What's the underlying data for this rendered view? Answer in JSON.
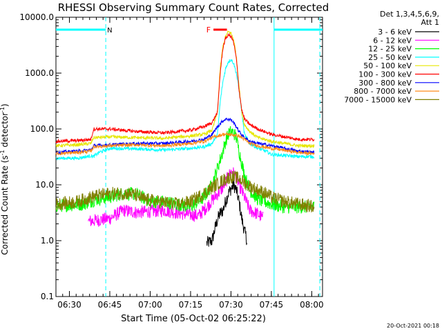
{
  "chart_data": {
    "type": "line",
    "title": "RHESSI Observing Summary Count Rates, Corrected",
    "xlabel": "Start Time (05-Oct-02 06:25:22)",
    "ylabel": "Corrected Count Rate (s⁻¹ detector⁻¹)",
    "ylabel_parts": {
      "main": "Corrected Count Rate (s",
      "sup1": "-1",
      "mid": " detector",
      "sup2": "-1",
      "end": ")"
    },
    "y_scale": "log",
    "ylim": [
      0.1,
      10000
    ],
    "xlim_minutes_after_0625": [
      0,
      99
    ],
    "yticks": [
      {
        "value": 0.1,
        "label": "0.1"
      },
      {
        "value": 1,
        "label": "1.0"
      },
      {
        "value": 10,
        "label": "10.0"
      },
      {
        "value": 100,
        "label": "100.0"
      },
      {
        "value": 1000,
        "label": "1000.0"
      },
      {
        "value": 10000,
        "label": "10000.0"
      }
    ],
    "xticks": [
      {
        "minute": 5,
        "label": "06:30"
      },
      {
        "minute": 20,
        "label": "06:45"
      },
      {
        "minute": 35,
        "label": "07:00"
      },
      {
        "minute": 50,
        "label": "07:15"
      },
      {
        "minute": 65,
        "label": "07:30"
      },
      {
        "minute": 80,
        "label": "07:45"
      },
      {
        "minute": 95,
        "label": "08:00"
      }
    ],
    "legend": {
      "header": [
        "Det 1,3,4,5,6,9,",
        "Att 1"
      ],
      "placement": "right"
    },
    "series": [
      {
        "name": "3 - 6 keV",
        "color": "#000000",
        "points": [
          [
            56,
            0.9
          ],
          [
            58,
            1.0
          ],
          [
            59,
            1.6
          ],
          [
            60,
            2.4
          ],
          [
            61,
            3.1
          ],
          [
            62,
            3.5
          ],
          [
            63,
            5.0
          ],
          [
            64,
            7.0
          ],
          [
            65,
            8.5
          ],
          [
            66,
            10.0
          ],
          [
            67,
            8.0
          ],
          [
            68,
            5.0
          ],
          [
            69,
            2.5
          ],
          [
            70,
            1.5
          ],
          [
            71,
            1.0
          ]
        ]
      },
      {
        "name": "6 - 12 keV",
        "color": "#ff00ff",
        "points": [
          [
            12,
            2.2
          ],
          [
            20,
            2.5
          ],
          [
            25,
            3.5
          ],
          [
            30,
            3.2
          ],
          [
            40,
            3.5
          ],
          [
            48,
            3.0
          ],
          [
            53,
            2.8
          ],
          [
            56,
            4.0
          ],
          [
            59,
            6.0
          ],
          [
            62,
            9.0
          ],
          [
            64,
            14.0
          ],
          [
            65,
            17.0
          ],
          [
            66,
            16.0
          ],
          [
            67,
            14.0
          ],
          [
            68,
            10.0
          ],
          [
            70,
            6.0
          ],
          [
            72,
            3.5
          ],
          [
            75,
            3.0
          ],
          [
            77,
            2.5
          ]
        ]
      },
      {
        "name": "12 - 25 keV",
        "color": "#00ff00",
        "points": [
          [
            0,
            4.2
          ],
          [
            10,
            4.5
          ],
          [
            15,
            5.5
          ],
          [
            20,
            6.0
          ],
          [
            25,
            7.0
          ],
          [
            30,
            6.8
          ],
          [
            35,
            5.0
          ],
          [
            40,
            5.0
          ],
          [
            45,
            4.5
          ],
          [
            50,
            4.0
          ],
          [
            55,
            6.0
          ],
          [
            58,
            10.0
          ],
          [
            60,
            20.0
          ],
          [
            62,
            40.0
          ],
          [
            63,
            60.0
          ],
          [
            64,
            80.0
          ],
          [
            65,
            90.0
          ],
          [
            66,
            85.0
          ],
          [
            67,
            70.0
          ],
          [
            68,
            40.0
          ],
          [
            70,
            15.0
          ],
          [
            72,
            8.0
          ],
          [
            75,
            5.5
          ],
          [
            80,
            4.5
          ],
          [
            85,
            4.0
          ],
          [
            90,
            4.0
          ],
          [
            96,
            4.0
          ]
        ]
      },
      {
        "name": "25 - 50 keV",
        "color": "#00ffff",
        "points": [
          [
            0,
            30
          ],
          [
            8,
            30
          ],
          [
            13,
            33
          ],
          [
            14,
            32
          ],
          [
            16,
            38
          ],
          [
            20,
            45
          ],
          [
            30,
            44
          ],
          [
            40,
            42
          ],
          [
            50,
            45
          ],
          [
            55,
            48
          ],
          [
            58,
            55
          ],
          [
            60,
            80
          ],
          [
            61,
            300
          ],
          [
            62,
            700
          ],
          [
            63,
            1200
          ],
          [
            64,
            1600
          ],
          [
            65,
            1750
          ],
          [
            66,
            1500
          ],
          [
            67,
            1000
          ],
          [
            68,
            500
          ],
          [
            69,
            200
          ],
          [
            70,
            80
          ],
          [
            72,
            55
          ],
          [
            75,
            45
          ],
          [
            78,
            40
          ],
          [
            80,
            35
          ],
          [
            90,
            32
          ],
          [
            96,
            32
          ]
        ]
      },
      {
        "name": "50 - 100 keV",
        "color": "#e6e600",
        "points": [
          [
            0,
            50
          ],
          [
            8,
            52
          ],
          [
            13,
            55
          ],
          [
            14,
            70
          ],
          [
            20,
            72
          ],
          [
            30,
            70
          ],
          [
            40,
            68
          ],
          [
            50,
            75
          ],
          [
            55,
            80
          ],
          [
            58,
            95
          ],
          [
            60,
            200
          ],
          [
            61,
            1200
          ],
          [
            62,
            3000
          ],
          [
            63,
            4500
          ],
          [
            64,
            5500
          ],
          [
            65,
            5200
          ],
          [
            66,
            4000
          ],
          [
            67,
            2000
          ],
          [
            68,
            600
          ],
          [
            69,
            200
          ],
          [
            70,
            120
          ],
          [
            72,
            90
          ],
          [
            75,
            70
          ],
          [
            80,
            60
          ],
          [
            90,
            50
          ],
          [
            96,
            50
          ]
        ]
      },
      {
        "name": "100 - 300 keV",
        "color": "#ff0000",
        "points": [
          [
            0,
            60
          ],
          [
            8,
            62
          ],
          [
            13,
            65
          ],
          [
            14,
            100
          ],
          [
            20,
            100
          ],
          [
            30,
            90
          ],
          [
            40,
            85
          ],
          [
            50,
            95
          ],
          [
            55,
            110
          ],
          [
            58,
            130
          ],
          [
            60,
            200
          ],
          [
            61,
            1000
          ],
          [
            62,
            2800
          ],
          [
            63,
            4200
          ],
          [
            64,
            4800
          ],
          [
            65,
            4600
          ],
          [
            66,
            3500
          ],
          [
            67,
            1800
          ],
          [
            68,
            500
          ],
          [
            69,
            220
          ],
          [
            70,
            150
          ],
          [
            72,
            120
          ],
          [
            75,
            100
          ],
          [
            80,
            80
          ],
          [
            90,
            65
          ],
          [
            96,
            65
          ]
        ]
      },
      {
        "name": "300 - 800 keV",
        "color": "#0000ff",
        "points": [
          [
            0,
            38
          ],
          [
            8,
            40
          ],
          [
            13,
            42
          ],
          [
            14,
            50
          ],
          [
            20,
            52
          ],
          [
            30,
            55
          ],
          [
            40,
            55
          ],
          [
            50,
            60
          ],
          [
            55,
            65
          ],
          [
            58,
            80
          ],
          [
            60,
            110
          ],
          [
            62,
            140
          ],
          [
            63,
            150
          ],
          [
            64,
            150
          ],
          [
            65,
            145
          ],
          [
            66,
            130
          ],
          [
            67,
            110
          ],
          [
            68,
            90
          ],
          [
            70,
            70
          ],
          [
            72,
            60
          ],
          [
            75,
            55
          ],
          [
            80,
            50
          ],
          [
            90,
            40
          ],
          [
            96,
            38
          ]
        ]
      },
      {
        "name": "800 - 7000 keV",
        "color": "#ff8c1a",
        "points": [
          [
            0,
            36
          ],
          [
            8,
            38
          ],
          [
            13,
            40
          ],
          [
            14,
            48
          ],
          [
            20,
            50
          ],
          [
            30,
            52
          ],
          [
            40,
            50
          ],
          [
            50,
            55
          ],
          [
            55,
            60
          ],
          [
            58,
            70
          ],
          [
            60,
            75
          ],
          [
            62,
            80
          ],
          [
            64,
            80
          ],
          [
            66,
            78
          ],
          [
            68,
            75
          ],
          [
            70,
            65
          ],
          [
            72,
            55
          ],
          [
            75,
            50
          ],
          [
            80,
            45
          ],
          [
            90,
            38
          ],
          [
            96,
            36
          ]
        ]
      },
      {
        "name": "7000 - 15000 keV",
        "color": "#808000",
        "points": [
          [
            0,
            4.5
          ],
          [
            8,
            5.0
          ],
          [
            13,
            6.0
          ],
          [
            16,
            6.5
          ],
          [
            20,
            7.0
          ],
          [
            28,
            7.0
          ],
          [
            33,
            5.5
          ],
          [
            38,
            5.0
          ],
          [
            45,
            4.5
          ],
          [
            50,
            5.0
          ],
          [
            55,
            7.0
          ],
          [
            58,
            9.0
          ],
          [
            62,
            12.0
          ],
          [
            65,
            14.0
          ],
          [
            68,
            13.0
          ],
          [
            71,
            10.0
          ],
          [
            75,
            8.0
          ],
          [
            78,
            7.0
          ],
          [
            80,
            6.0
          ],
          [
            85,
            5.0
          ],
          [
            90,
            4.5
          ],
          [
            96,
            4.0
          ]
        ]
      }
    ],
    "annotations": {
      "flare_label": "F",
      "flare_bar": {
        "start_minute": 58.5,
        "end_minute": 63.5,
        "color": "#ff0000",
        "level": 6000
      },
      "night_label": "N",
      "night_intervals": [
        {
          "start_minute": 0,
          "end_minute": 18.5,
          "level": 6000
        },
        {
          "start_minute": 81,
          "end_minute": 99,
          "level": 6000
        }
      ],
      "vertical_markers": [
        {
          "minute": 18.5,
          "style": "dashed",
          "color": "#00ffff"
        },
        {
          "minute": 81,
          "style": "solid",
          "color": "#00ffff"
        },
        {
          "minute": 98,
          "style": "dashed",
          "color": "#00ffff"
        }
      ]
    },
    "footer_timestamp": "20-Oct-2021 00:18"
  }
}
